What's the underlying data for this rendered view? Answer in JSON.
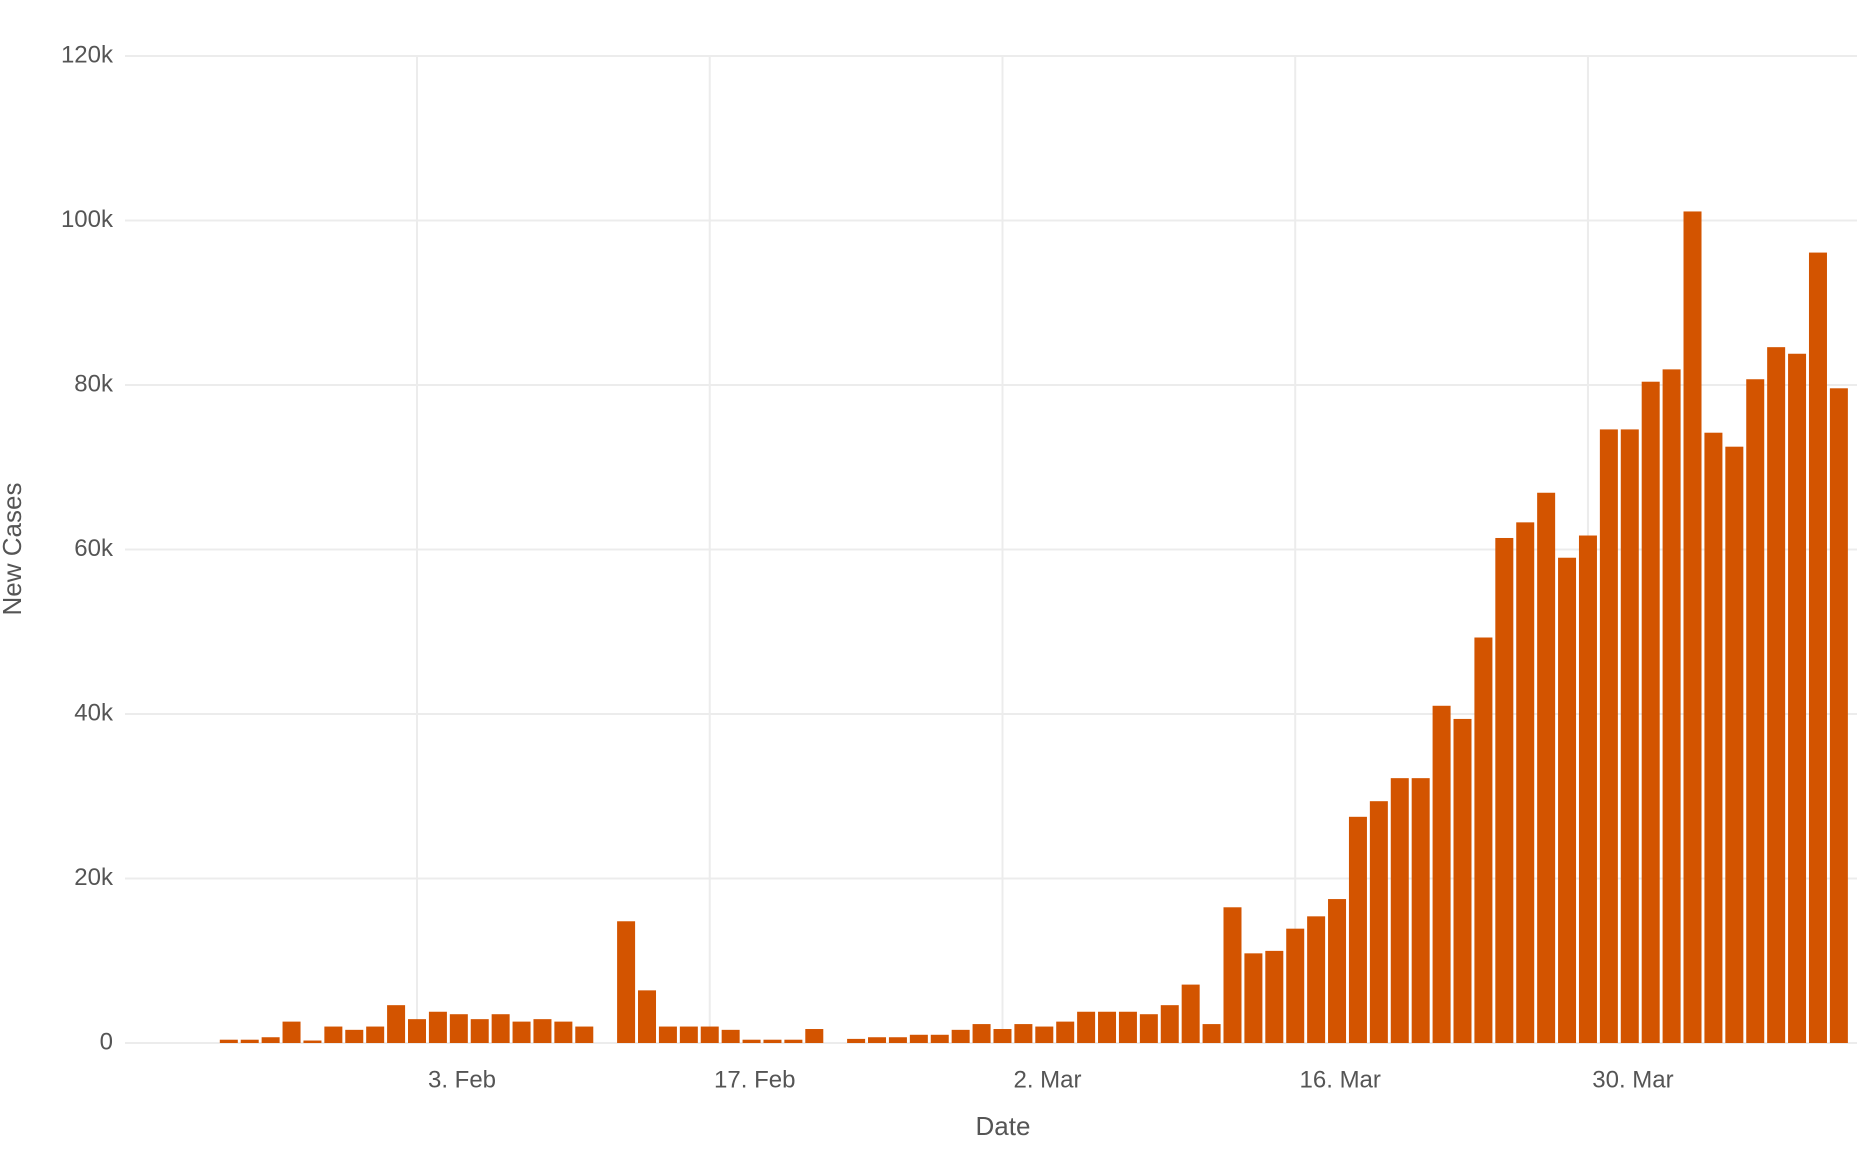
{
  "chart_data": {
    "type": "bar",
    "x_label": "Date",
    "y_label": "New Cases",
    "color": "#d35400",
    "grid": true,
    "categories": [
      null,
      null,
      null,
      null,
      null,
      null,
      null,
      null,
      null,
      "3. Feb",
      null,
      null,
      null,
      null,
      null,
      null,
      null,
      null,
      null,
      null,
      null,
      null,
      null,
      "17. Feb",
      null,
      null,
      null,
      null,
      null,
      null,
      null,
      null,
      null,
      null,
      null,
      null,
      null,
      "2. Mar",
      null,
      null,
      null,
      null,
      null,
      null,
      null,
      null,
      null,
      null,
      null,
      null,
      null,
      "16. Mar",
      null,
      null,
      null,
      null,
      null,
      null,
      null,
      null,
      null,
      null,
      null,
      null,
      null,
      "30. Mar",
      null,
      null,
      null,
      null,
      null,
      null,
      null,
      null,
      null,
      null,
      null,
      null
    ],
    "values": [
      400,
      400,
      700,
      2600,
      300,
      2000,
      1600,
      2000,
      4600,
      2900,
      3800,
      3500,
      2900,
      3500,
      2600,
      2900,
      2600,
      2000,
      0,
      14800,
      6400,
      2000,
      2000,
      2000,
      1600,
      400,
      400,
      400,
      1700,
      0,
      500,
      700,
      700,
      1000,
      1000,
      1600,
      2300,
      1700,
      2300,
      2000,
      2600,
      3800,
      3800,
      3800,
      3500,
      4600,
      7100,
      2300,
      16500,
      10900,
      11200,
      13900,
      15400,
      17500,
      27500,
      29400,
      32200,
      32200,
      41000,
      39400,
      49300,
      61400,
      63300,
      66900,
      59000,
      61700,
      74600,
      74600,
      80400,
      81900,
      101100,
      74200,
      72500,
      80700,
      84600,
      83800,
      96100,
      79600
    ],
    "ylim": [
      0,
      120000
    ],
    "yticks": [
      0,
      {
        "value": 20000,
        "label": "20k"
      },
      {
        "value": 40000,
        "label": "40k"
      },
      {
        "value": 60000,
        "label": "60k"
      },
      {
        "value": 80000,
        "label": "80k"
      },
      {
        "value": 100000,
        "label": "100k"
      },
      {
        "value": 120000,
        "label": "120k"
      }
    ]
  }
}
